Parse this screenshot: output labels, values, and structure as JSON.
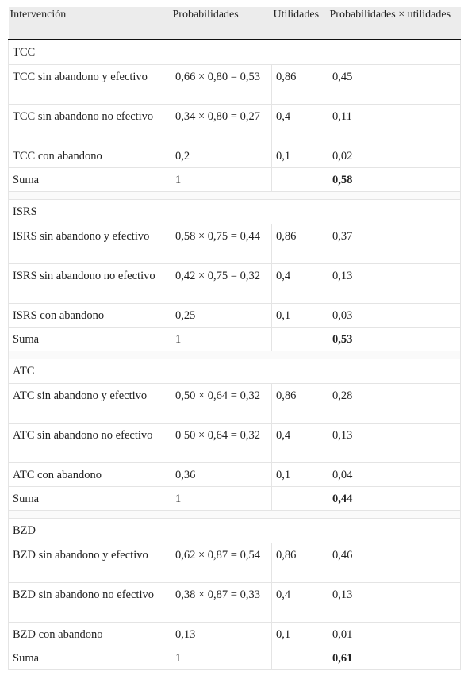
{
  "headers": [
    "Intervención",
    "Probabilidades",
    "Utilidades",
    "Probabilidades × utilidades"
  ],
  "groups": [
    {
      "name": "TCC",
      "rows": [
        {
          "label": " TCC sin abandono y efectivo",
          "prob": "0,66 × 0,80 = 0,53",
          "util": "0,86",
          "pu": "0,45"
        },
        {
          "label": " TCC sin abandono no efectivo",
          "prob": "0,34 × 0,80 = 0,27",
          "util": "0,4",
          "pu": "0,11"
        },
        {
          "label": " TCC con abandono",
          "prob": "0,2",
          "util": "0,1",
          "pu": "0,02"
        }
      ],
      "sum": {
        "label": "Suma",
        "prob": "1",
        "util": "",
        "pu": "0,58"
      }
    },
    {
      "name": "ISRS",
      "rows": [
        {
          "label": " ISRS sin abandono y efectivo",
          "prob": "0,58 × 0,75 = 0,44",
          "util": "0,86",
          "pu": "0,37"
        },
        {
          "label": " ISRS sin abandono no efectivo",
          "prob": "0,42 × 0,75 = 0,32",
          "util": "0,4",
          "pu": "0,13"
        },
        {
          "label": " ISRS con abandono",
          "prob": "0,25",
          "util": "0,1",
          "pu": "0,03"
        }
      ],
      "sum": {
        "label": "Suma",
        "prob": "1",
        "util": "",
        "pu": "0,53"
      }
    },
    {
      "name": "ATC",
      "rows": [
        {
          "label": " ATC sin abandono y efectivo",
          "prob": "0,50 × 0,64 = 0,32",
          "util": "0,86",
          "pu": "0,28"
        },
        {
          "label": " ATC sin abandono no efectivo",
          "prob": "0 50 × 0,64 = 0,32",
          "util": "0,4",
          "pu": "0,13"
        },
        {
          "label": " ATC con abandono",
          "prob": "0,36",
          "util": "0,1",
          "pu": "0,04"
        }
      ],
      "sum": {
        "label": "Suma",
        "prob": "1",
        "util": "",
        "pu": "0,44"
      }
    },
    {
      "name": "BZD",
      "rows": [
        {
          "label": " BZD sin abandono y efectivo",
          "prob": "0,62 × 0,87 = 0,54",
          "util": "0,86",
          "pu": "0,46"
        },
        {
          "label": " BZD sin abandono no efectivo",
          "prob": "0,38 × 0,87 = 0,33",
          "util": "0,4",
          "pu": "0,13"
        },
        {
          "label": " BZD con abandono",
          "prob": "0,13",
          "util": "0,1",
          "pu": "0,01"
        }
      ],
      "sum": {
        "label": "Suma",
        "prob": "1",
        "util": "",
        "pu": "0,61"
      }
    }
  ]
}
